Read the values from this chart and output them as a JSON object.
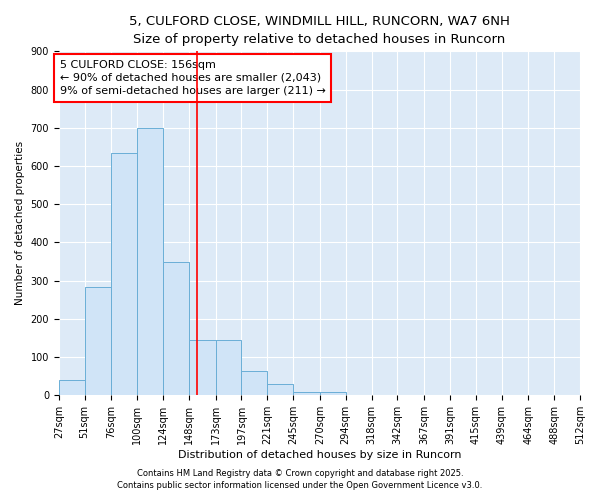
{
  "title_line1": "5, CULFORD CLOSE, WINDMILL HILL, RUNCORN, WA7 6NH",
  "title_line2": "Size of property relative to detached houses in Runcorn",
  "xlabel": "Distribution of detached houses by size in Runcorn",
  "ylabel": "Number of detached properties",
  "bin_edges": [
    27,
    51,
    76,
    100,
    124,
    148,
    173,
    197,
    221,
    245,
    270,
    294,
    318,
    342,
    367,
    391,
    415,
    439,
    464,
    488,
    512
  ],
  "bar_heights": [
    40,
    283,
    635,
    700,
    350,
    145,
    145,
    65,
    30,
    10,
    10,
    0,
    0,
    0,
    0,
    0,
    0,
    0,
    0,
    0
  ],
  "bar_color": "#d0e4f7",
  "bar_edge_color": "#6aaed6",
  "red_line_x": 156,
  "annotation_text_line1": "5 CULFORD CLOSE: 156sqm",
  "annotation_text_line2": "← 90% of detached houses are smaller (2,043)",
  "annotation_text_line3": "9% of semi-detached houses are larger (211) →",
  "annotation_box_color": "white",
  "annotation_box_edge_color": "red",
  "ylim": [
    0,
    900
  ],
  "yticks": [
    0,
    100,
    200,
    300,
    400,
    500,
    600,
    700,
    800,
    900
  ],
  "bg_color": "#ddeaf7",
  "footer_line1": "Contains HM Land Registry data © Crown copyright and database right 2025.",
  "footer_line2": "Contains public sector information licensed under the Open Government Licence v3.0.",
  "title_fontsize": 9.5,
  "subtitle_fontsize": 8.5,
  "axis_label_fontsize": 8,
  "tick_label_fontsize": 7,
  "annotation_fontsize": 8,
  "footer_fontsize": 6,
  "ylabel_fontsize": 7.5
}
